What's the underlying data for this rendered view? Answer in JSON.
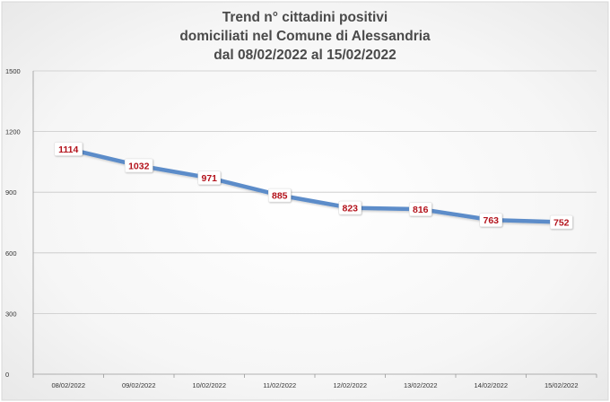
{
  "chart_data": {
    "type": "line",
    "title_lines": [
      "Trend n° cittadini positivi",
      "domiciliati nel Comune di Alessandria",
      "dal 08/02/2022 al 15/02/2022"
    ],
    "categories": [
      "08/02/2022",
      "09/02/2022",
      "10/02/2022",
      "11/02/2022",
      "12/02/2022",
      "13/02/2022",
      "14/02/2022",
      "15/02/2022"
    ],
    "series": [
      {
        "values": [
          1114,
          1032,
          971,
          885,
          823,
          816,
          763,
          752
        ],
        "color": "#5b8cc9"
      }
    ],
    "data_labels": [
      "1114",
      "1032",
      "971",
      "885",
      "823",
      "816",
      "763",
      "752"
    ],
    "y_ticks": [
      0,
      300,
      600,
      900,
      1200,
      1500
    ],
    "y_tick_labels": [
      "0",
      "300",
      "600",
      "900",
      "1200",
      "1500"
    ],
    "ylim": [
      0,
      1500
    ],
    "grid": true,
    "legend": "none",
    "label_color": "#b3121b",
    "title_color": "#4a4a4a"
  }
}
